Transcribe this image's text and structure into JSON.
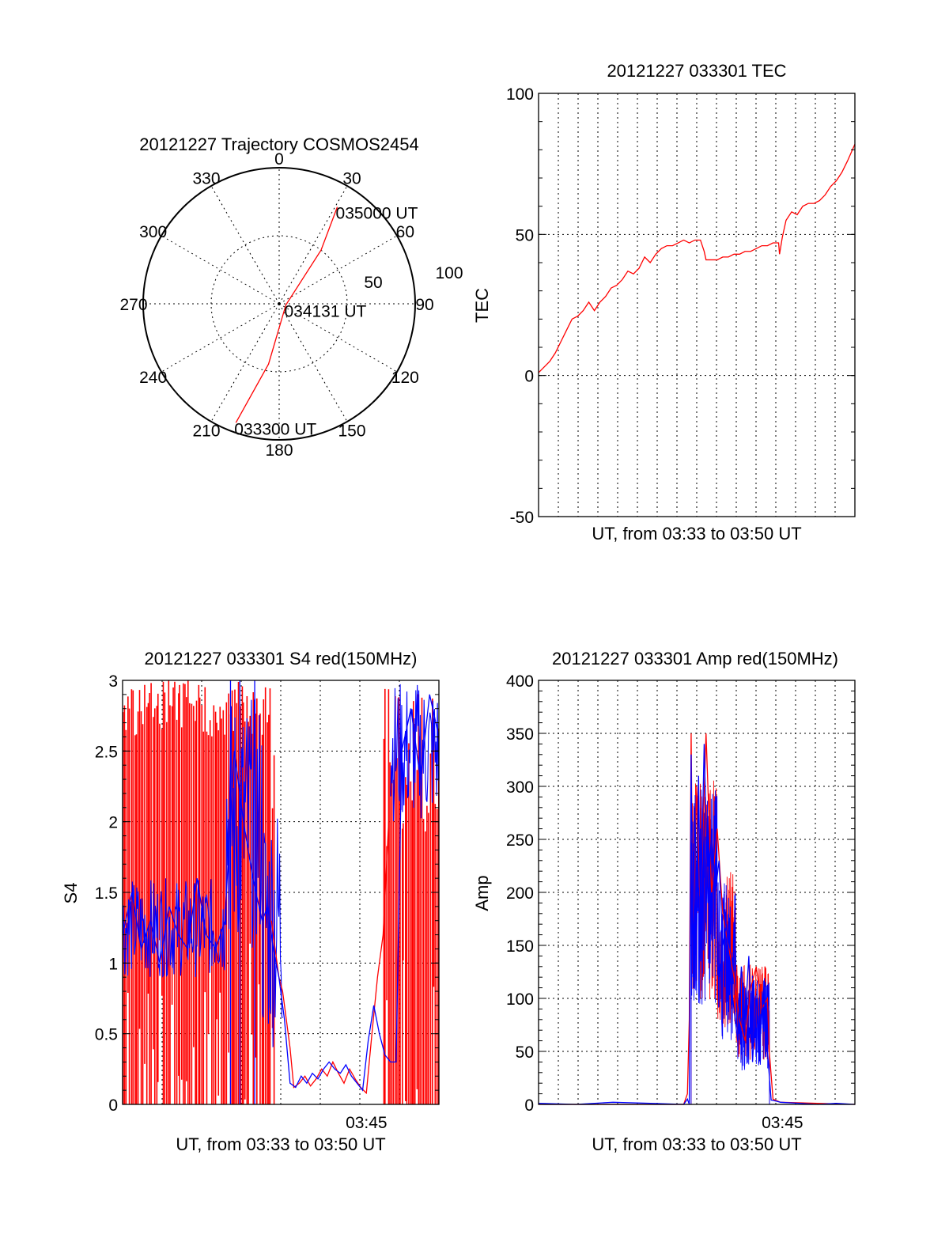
{
  "chart_data": [
    {
      "type": "polar",
      "title": "20121227 Trajectory COSMOS2454",
      "azimuth_labels": [
        "0",
        "30",
        "60",
        "90",
        "120",
        "150",
        "180",
        "210",
        "240",
        "270",
        "300",
        "330"
      ],
      "rlabels": [
        "50",
        "100"
      ],
      "rmax": 100,
      "series": [
        {
          "color": "#ff0000",
          "points": [
            {
              "az": 200,
              "r": 93,
              "label": "033300 UT"
            },
            {
              "az": 190,
              "r": 45
            },
            {
              "az": 100,
              "r": 5,
              "label": "034131 UT"
            },
            {
              "az": 38,
              "r": 50
            },
            {
              "az": 31,
              "r": 83,
              "label": "035000 UT"
            }
          ]
        }
      ]
    },
    {
      "type": "line",
      "title": "20121227 033301 TEC",
      "xlabel": "UT, from 03:33 to 03:50 UT",
      "ylabel": "TEC",
      "xlim": [
        0,
        17
      ],
      "ylim": [
        -50,
        100
      ],
      "yticks": [
        "-50",
        "0",
        "50",
        "100"
      ],
      "grid": true,
      "series": [
        {
          "color": "#ff0000",
          "x": [
            0,
            0.3,
            0.6,
            0.9,
            1.2,
            1.5,
            1.8,
            2.1,
            2.4,
            2.7,
            3.0,
            3.3,
            3.6,
            3.9,
            4.2,
            4.5,
            4.8,
            5.1,
            5.4,
            5.7,
            6.0,
            6.3,
            6.6,
            6.9,
            7.2,
            7.5,
            7.8,
            8.1,
            8.4,
            8.7,
            8.9,
            9.0,
            9.3,
            9.6,
            9.9,
            10.2,
            10.5,
            10.8,
            11.1,
            11.4,
            11.7,
            12.0,
            12.3,
            12.6,
            12.9,
            12.95,
            13.1,
            13.3,
            13.6,
            13.9,
            14.2,
            14.5,
            14.8,
            15.1,
            15.4,
            15.7,
            16.0,
            16.3,
            16.6,
            17.0
          ],
          "y": [
            1,
            3,
            5,
            8,
            12,
            16,
            20,
            21,
            23,
            26,
            23,
            26,
            28,
            31,
            32,
            34,
            37,
            36,
            38,
            42,
            40,
            43,
            45,
            46,
            46,
            47,
            48,
            47,
            48,
            48,
            44,
            41,
            41,
            41,
            42,
            42,
            43,
            43,
            44,
            44,
            45,
            46,
            46,
            47,
            47,
            43,
            49,
            55,
            58,
            57,
            60,
            61,
            61,
            62,
            64,
            67,
            69,
            72,
            76,
            82
          ]
        }
      ]
    },
    {
      "type": "line",
      "title": "20121227 033301 S4 red(150MHz)",
      "xlabel": "UT, from 03:33 to 03:50 UT",
      "ylabel": "S4",
      "xlim": [
        0,
        17
      ],
      "ylim": [
        0,
        3
      ],
      "yticks": [
        "0",
        "0.5",
        "1",
        "1.5",
        "2",
        "2.5",
        "3"
      ],
      "xtick_labels": [
        {
          "x": 12,
          "label": "03:45"
        }
      ],
      "grid": true,
      "series": [
        {
          "color": "#ff0000",
          "x": [
            8.0,
            8.2,
            8.4,
            8.6,
            8.8,
            9.0,
            9.2,
            9.5,
            9.8,
            10.1,
            10.4,
            10.7,
            11.0,
            11.3,
            11.6,
            11.9,
            12.2,
            12.5,
            12.8,
            13.1,
            13.4,
            13.7,
            14.0,
            14.3
          ],
          "y": [
            1.3,
            1.1,
            0.9,
            0.8,
            0.6,
            0.4,
            0.12,
            0.15,
            0.2,
            0.13,
            0.18,
            0.25,
            0.2,
            0.3,
            0.22,
            0.15,
            0.25,
            0.18,
            0.12,
            0.08,
            0.5,
            0.9,
            1.2,
            2.0
          ]
        },
        {
          "color": "#0000ff",
          "x": [
            0,
            0.5,
            1.0,
            1.5,
            2.0,
            2.5,
            3.0,
            3.5,
            4.0,
            4.5,
            5.0,
            5.5,
            6.0,
            6.5,
            7.0,
            7.5,
            7.8,
            8.1,
            8.4,
            8.7,
            9.0,
            9.3,
            9.6,
            9.9,
            10.2,
            10.5,
            10.8,
            11.1,
            11.4,
            11.7,
            12.0,
            12.3,
            12.6,
            12.9,
            13.2,
            13.5,
            13.8,
            14.1,
            14.4,
            14.7,
            15.0,
            15.5,
            16.0,
            16.5,
            17.0
          ],
          "y": [
            1.2,
            1.5,
            1.1,
            1.3,
            1.0,
            1.4,
            1.2,
            1.1,
            1.6,
            1.2,
            1.1,
            1.3,
            2.5,
            2.0,
            1.6,
            1.3,
            1.4,
            1.1,
            0.9,
            0.6,
            0.15,
            0.12,
            0.2,
            0.15,
            0.22,
            0.18,
            0.25,
            0.3,
            0.25,
            0.22,
            0.28,
            0.2,
            0.15,
            0.1,
            0.45,
            0.7,
            0.5,
            0.35,
            0.3,
            0.3,
            2.5,
            2.8,
            2.3,
            2.9,
            2.6
          ]
        }
      ]
    },
    {
      "type": "line",
      "title": "20121227 033301 Amp red(150MHz)",
      "xlabel": "UT, from 03:33 to 03:50 UT",
      "ylabel": "Amp",
      "xlim": [
        0,
        17
      ],
      "ylim": [
        0,
        400
      ],
      "yticks": [
        "0",
        "50",
        "100",
        "150",
        "200",
        "250",
        "300",
        "350",
        "400"
      ],
      "xtick_labels": [
        {
          "x": 12,
          "label": "03:45"
        }
      ],
      "grid": true,
      "series": [
        {
          "color": "#ff0000",
          "x": [
            0,
            4,
            7.8,
            8.0,
            8.1,
            8.2,
            8.3,
            8.5,
            8.7,
            9.0,
            9.3,
            9.6,
            9.9,
            10.2,
            10.5,
            10.8,
            11.1,
            11.4,
            11.7,
            12.0,
            12.3,
            12.4,
            12.6,
            13.0,
            17.0
          ],
          "y": [
            0,
            0,
            0,
            10,
            80,
            350,
            150,
            300,
            180,
            350,
            200,
            260,
            180,
            150,
            120,
            80,
            60,
            110,
            130,
            90,
            100,
            50,
            5,
            2,
            0
          ]
        },
        {
          "color": "#0000ff",
          "x": [
            0,
            2,
            4,
            6,
            7.8,
            8.0,
            8.1,
            8.2,
            8.3,
            8.4,
            8.5,
            8.6,
            8.7,
            8.9,
            9.1,
            9.3,
            9.5,
            9.7,
            9.9,
            10.1,
            10.3,
            10.5,
            10.7,
            10.9,
            11.1,
            11.3,
            11.5,
            11.7,
            11.9,
            12.1,
            12.3,
            12.5,
            12.8,
            13.0,
            14.0,
            15.0,
            16.0,
            17.0
          ],
          "y": [
            1,
            0,
            2,
            1,
            0,
            5,
            0,
            330,
            120,
            280,
            200,
            310,
            170,
            340,
            190,
            260,
            200,
            230,
            150,
            170,
            120,
            90,
            60,
            130,
            80,
            140,
            40,
            100,
            60,
            110,
            50,
            4,
            3,
            2,
            1,
            0,
            1,
            0
          ]
        }
      ]
    }
  ]
}
